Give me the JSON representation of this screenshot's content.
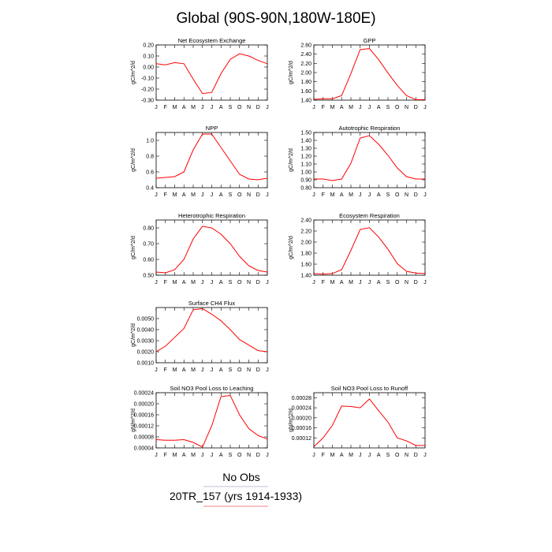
{
  "figure": {
    "title": "Global (90S-90N,180W-180E)"
  },
  "legend": [
    {
      "label": "No Obs",
      "color": "#bfbfdf"
    },
    {
      "label": "20TR_157 (yrs 1914-1933)",
      "color": "#f08080"
    }
  ],
  "chart_data": [
    {
      "type": "line",
      "title": "Net Ecosystem Exchange",
      "ylabel": "gC/m^2/d",
      "x": [
        "J",
        "F",
        "M",
        "A",
        "M",
        "J",
        "J",
        "A",
        "S",
        "O",
        "N",
        "D",
        "J"
      ],
      "ylim": [
        -0.3,
        0.2
      ],
      "yticks": [
        "0.20",
        "0.10",
        "0.00",
        "-0.10",
        "-0.20",
        "-0.30"
      ],
      "series": [
        {
          "color": "#ff0000",
          "values": [
            0.03,
            0.02,
            0.04,
            0.03,
            -0.11,
            -0.24,
            -0.23,
            -0.06,
            0.07,
            0.12,
            0.1,
            0.06,
            0.03
          ]
        }
      ]
    },
    {
      "type": "line",
      "title": "GPP",
      "ylabel": "gC/m^2/d",
      "x": [
        "J",
        "F",
        "M",
        "A",
        "M",
        "J",
        "J",
        "A",
        "S",
        "O",
        "N",
        "D",
        "J"
      ],
      "ylim": [
        1.4,
        2.6
      ],
      "yticks": [
        "2.60",
        "2.40",
        "2.20",
        "2.00",
        "1.80",
        "1.60",
        "1.40"
      ],
      "series": [
        {
          "color": "#ff0000",
          "values": [
            1.42,
            1.43,
            1.43,
            1.5,
            1.98,
            2.5,
            2.52,
            2.28,
            1.99,
            1.72,
            1.5,
            1.41,
            1.41
          ]
        }
      ]
    },
    {
      "type": "line",
      "title": "NPP",
      "ylabel": "gC/m^2/d",
      "x": [
        "J",
        "F",
        "M",
        "A",
        "M",
        "J",
        "J",
        "A",
        "S",
        "O",
        "N",
        "D",
        "J"
      ],
      "ylim": [
        0.4,
        1.1
      ],
      "yticks": [
        "1.0",
        "0.8",
        "0.6",
        "0.4"
      ],
      "series": [
        {
          "color": "#ff0000",
          "values": [
            0.52,
            0.53,
            0.54,
            0.6,
            0.88,
            1.08,
            1.08,
            0.91,
            0.74,
            0.57,
            0.51,
            0.5,
            0.52
          ]
        }
      ]
    },
    {
      "type": "line",
      "title": "Autotrophic Respiration",
      "ylabel": "gC/m^2/d",
      "x": [
        "J",
        "F",
        "M",
        "A",
        "M",
        "J",
        "J",
        "A",
        "S",
        "O",
        "N",
        "D",
        "J"
      ],
      "ylim": [
        0.8,
        1.5
      ],
      "yticks": [
        "1.50",
        "1.40",
        "1.30",
        "1.20",
        "1.10",
        "1.00",
        "0.90",
        "0.80"
      ],
      "series": [
        {
          "color": "#ff0000",
          "values": [
            0.91,
            0.91,
            0.89,
            0.91,
            1.11,
            1.43,
            1.46,
            1.35,
            1.21,
            1.05,
            0.94,
            0.91,
            0.91
          ]
        }
      ]
    },
    {
      "type": "line",
      "title": "Heterotrophic Respiration",
      "ylabel": "gC/m^2/d",
      "x": [
        "J",
        "F",
        "M",
        "A",
        "M",
        "J",
        "J",
        "A",
        "S",
        "O",
        "N",
        "D",
        "J"
      ],
      "ylim": [
        0.5,
        0.85
      ],
      "yticks": [
        "0.80",
        "0.70",
        "0.60",
        "0.50"
      ],
      "series": [
        {
          "color": "#ff0000",
          "values": [
            0.52,
            0.515,
            0.535,
            0.6,
            0.73,
            0.81,
            0.8,
            0.76,
            0.7,
            0.62,
            0.56,
            0.53,
            0.52
          ]
        }
      ]
    },
    {
      "type": "line",
      "title": "Ecosystem Respiration",
      "ylabel": "gC/m^2/d",
      "x": [
        "J",
        "F",
        "M",
        "A",
        "M",
        "J",
        "J",
        "A",
        "S",
        "O",
        "N",
        "D",
        "J"
      ],
      "ylim": [
        1.4,
        2.4
      ],
      "yticks": [
        "2.40",
        "2.20",
        "2.00",
        "1.80",
        "1.60",
        "1.40"
      ],
      "series": [
        {
          "color": "#ff0000",
          "values": [
            1.43,
            1.42,
            1.43,
            1.5,
            1.85,
            2.23,
            2.26,
            2.09,
            1.87,
            1.61,
            1.47,
            1.44,
            1.43
          ]
        }
      ]
    },
    {
      "type": "line",
      "title": "Surface CH4 Flux",
      "ylabel": "gC/m^2/d",
      "x": [
        "J",
        "F",
        "M",
        "A",
        "M",
        "J",
        "J",
        "A",
        "S",
        "O",
        "N",
        "D",
        "J"
      ],
      "ylim": [
        0.001,
        0.006
      ],
      "yticks": [
        "0.0050",
        "0.0040",
        "0.0030",
        "0.0020",
        "0.0010"
      ],
      "series": [
        {
          "color": "#ff0000",
          "values": [
            0.002,
            0.0025,
            0.0033,
            0.0041,
            0.0058,
            0.0059,
            0.0054,
            0.0048,
            0.004,
            0.0031,
            0.0026,
            0.0021,
            0.002
          ]
        }
      ]
    },
    {
      "type": "line",
      "title": "Soil NO3 Pool Loss to Leaching",
      "ylabel": "gN/m^2/d",
      "x": [
        "J",
        "F",
        "M",
        "A",
        "M",
        "J",
        "J",
        "A",
        "S",
        "O",
        "N",
        "D",
        "J"
      ],
      "ylim": [
        4e-05,
        0.00024
      ],
      "yticks": [
        "0.00024",
        "0.00020",
        "0.00016",
        "0.00012",
        "0.00008",
        "0.00004"
      ],
      "series": [
        {
          "color": "#ff0000",
          "values": [
            7e-05,
            6.8e-05,
            6.8e-05,
            7e-05,
            6e-05,
            4.3e-05,
            0.00012,
            0.000226,
            0.00023,
            0.00016,
            0.00011,
            8.5e-05,
            7.2e-05
          ]
        }
      ]
    },
    {
      "type": "line",
      "title": "Soil NO3 Pool Loss to Runoff",
      "ylabel": "gN/m^2/d",
      "x": [
        "J",
        "F",
        "M",
        "A",
        "M",
        "J",
        "J",
        "A",
        "S",
        "O",
        "N",
        "D",
        "J"
      ],
      "ylim": [
        8e-05,
        0.0003
      ],
      "yticks": [
        "0.00028",
        "0.00024",
        "0.00020",
        "0.00016",
        "0.00012"
      ],
      "series": [
        {
          "color": "#ff0000",
          "values": [
            8.5e-05,
            0.00012,
            0.00017,
            0.000247,
            0.000245,
            0.00024,
            0.000275,
            0.000228,
            0.000183,
            0.00012,
            0.000108,
            9e-05,
            9e-05
          ]
        }
      ]
    }
  ]
}
